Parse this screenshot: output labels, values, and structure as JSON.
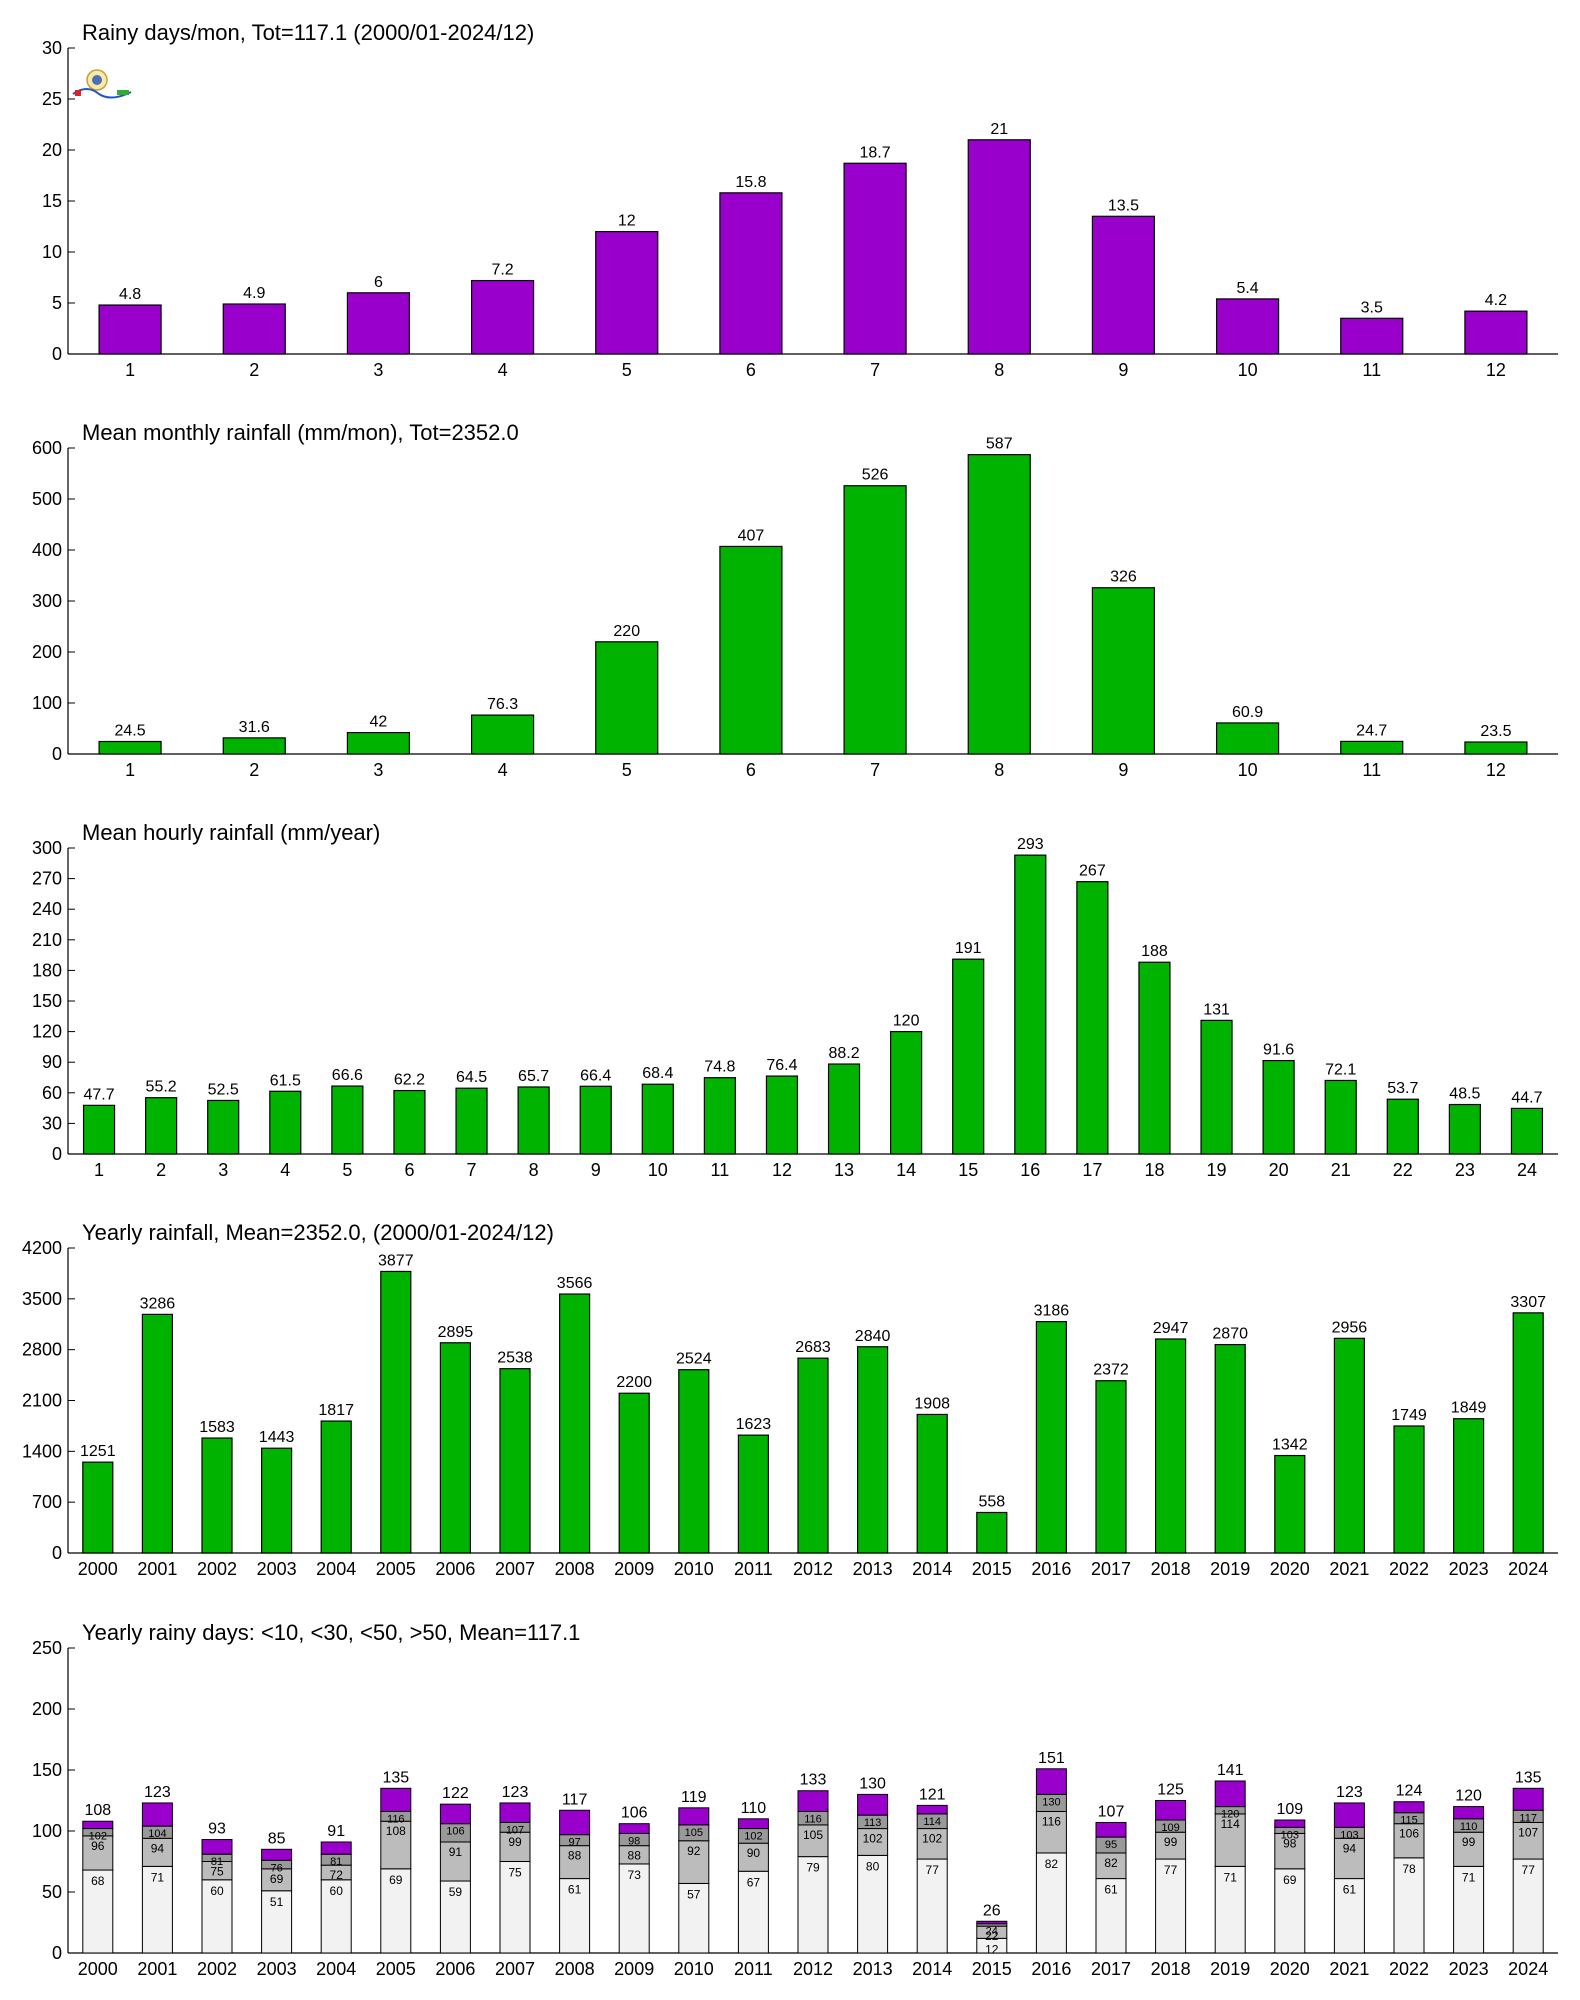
{
  "colors": {
    "purple": "#9900cc",
    "green": "#00b300",
    "gray_dark": "#999999",
    "gray_mid": "#bcbcbc",
    "gray_light": "#f2f2f2"
  },
  "logo": {
    "icon": "station-logo-icon"
  },
  "chart_data": [
    {
      "type": "bar",
      "title": "Rainy days/mon, Tot=117.1 (2000/01-2024/12)",
      "categories": [
        "1",
        "2",
        "3",
        "4",
        "5",
        "6",
        "7",
        "8",
        "9",
        "10",
        "11",
        "12"
      ],
      "values": [
        4.8,
        4.9,
        6,
        7.2,
        12,
        15.8,
        18.7,
        21,
        13.5,
        5.4,
        3.5,
        4.2
      ],
      "labels": [
        "4.8",
        "4.9",
        "6",
        "7.2",
        "12",
        "15.8",
        "18.7",
        "21",
        "13.5",
        "5.4",
        "3.5",
        "4.2"
      ],
      "ylim": [
        0,
        30
      ],
      "yticks": [
        "0",
        "5",
        "10",
        "15",
        "20",
        "25",
        "30"
      ],
      "color": "#9900cc"
    },
    {
      "type": "bar",
      "title": "Mean monthly rainfall (mm/mon), Tot=2352.0",
      "categories": [
        "1",
        "2",
        "3",
        "4",
        "5",
        "6",
        "7",
        "8",
        "9",
        "10",
        "11",
        "12"
      ],
      "values": [
        24.5,
        31.6,
        42,
        76.3,
        220,
        407,
        526,
        587,
        326,
        60.9,
        24.7,
        23.5
      ],
      "labels": [
        "24.5",
        "31.6",
        "42",
        "76.3",
        "220",
        "407",
        "526",
        "587",
        "326",
        "60.9",
        "24.7",
        "23.5"
      ],
      "ylim": [
        0,
        600
      ],
      "yticks": [
        "0",
        "100",
        "200",
        "300",
        "400",
        "500",
        "600"
      ],
      "color": "#00b300"
    },
    {
      "type": "bar",
      "title": "Mean hourly rainfall (mm/year)",
      "categories": [
        "1",
        "2",
        "3",
        "4",
        "5",
        "6",
        "7",
        "8",
        "9",
        "10",
        "11",
        "12",
        "13",
        "14",
        "15",
        "16",
        "17",
        "18",
        "19",
        "20",
        "21",
        "22",
        "23",
        "24"
      ],
      "values": [
        47.7,
        55.2,
        52.5,
        61.5,
        66.6,
        62.2,
        64.5,
        65.7,
        66.4,
        68.4,
        74.8,
        76.4,
        88.2,
        120,
        191,
        293,
        267,
        188,
        131,
        91.6,
        72.1,
        53.7,
        48.5,
        44.7
      ],
      "labels": [
        "47.7",
        "55.2",
        "52.5",
        "61.5",
        "66.6",
        "62.2",
        "64.5",
        "65.7",
        "66.4",
        "68.4",
        "74.8",
        "76.4",
        "88.2",
        "120",
        "191",
        "293",
        "267",
        "188",
        "131",
        "91.6",
        "72.1",
        "53.7",
        "48.5",
        "44.7"
      ],
      "ylim": [
        0,
        300
      ],
      "yticks": [
        "0",
        "30",
        "60",
        "90",
        "120",
        "150",
        "180",
        "210",
        "240",
        "270",
        "300"
      ],
      "color": "#00b300"
    },
    {
      "type": "bar",
      "title": "Yearly rainfall, Mean=2352.0, (2000/01-2024/12)",
      "categories": [
        "2000",
        "2001",
        "2002",
        "2003",
        "2004",
        "2005",
        "2006",
        "2007",
        "2008",
        "2009",
        "2010",
        "2011",
        "2012",
        "2013",
        "2014",
        "2015",
        "2016",
        "2017",
        "2018",
        "2019",
        "2020",
        "2021",
        "2022",
        "2023",
        "2024"
      ],
      "values": [
        1251,
        3286,
        1583,
        1443,
        1817,
        3877,
        2895,
        2538,
        3566,
        2200,
        2524,
        1623,
        2683,
        2840,
        1908,
        558,
        3186,
        2372,
        2947,
        2870,
        1342,
        2956,
        1749,
        1849,
        3307
      ],
      "labels": [
        "1251",
        "3286",
        "1583",
        "1443",
        "1817",
        "3877",
        "2895",
        "2538",
        "3566",
        "2200",
        "2524",
        "1623",
        "2683",
        "2840",
        "1908",
        "558",
        "3186",
        "2372",
        "2947",
        "2870",
        "1342",
        "2956",
        "1749",
        "1849",
        "3307"
      ],
      "ylim": [
        0,
        4200
      ],
      "yticks": [
        "0",
        "700",
        "1400",
        "2100",
        "2800",
        "3500",
        "4200"
      ],
      "color": "#00b300"
    },
    {
      "type": "bar",
      "stacked": true,
      "title": "Yearly rainy days: <10, <30, <50, >50, Mean=117.1",
      "categories": [
        "2000",
        "2001",
        "2002",
        "2003",
        "2004",
        "2005",
        "2006",
        "2007",
        "2008",
        "2009",
        "2010",
        "2011",
        "2012",
        "2013",
        "2014",
        "2015",
        "2016",
        "2017",
        "2018",
        "2019",
        "2020",
        "2021",
        "2022",
        "2023",
        "2024"
      ],
      "cumulative": {
        "lt10": [
          68,
          71,
          60,
          51,
          60,
          69,
          59,
          75,
          61,
          73,
          57,
          67,
          79,
          80,
          77,
          12,
          82,
          61,
          77,
          71,
          69,
          61,
          78,
          71,
          77
        ],
        "lt30": [
          96,
          94,
          75,
          69,
          72,
          108,
          91,
          99,
          88,
          88,
          92,
          90,
          105,
          102,
          102,
          22,
          116,
          82,
          99,
          114,
          98,
          94,
          106,
          99,
          107
        ],
        "lt50": [
          102,
          104,
          81,
          76,
          81,
          116,
          106,
          107,
          97,
          98,
          105,
          102,
          116,
          113,
          114,
          24,
          130,
          95,
          109,
          120,
          103,
          103,
          115,
          110,
          117
        ],
        "total": [
          108,
          123,
          93,
          85,
          91,
          135,
          122,
          123,
          117,
          106,
          119,
          110,
          133,
          130,
          121,
          26,
          151,
          107,
          125,
          141,
          109,
          123,
          124,
          120,
          135
        ]
      },
      "ylim": [
        0,
        250
      ],
      "yticks": [
        "0",
        "50",
        "100",
        "150",
        "200",
        "250"
      ]
    }
  ]
}
